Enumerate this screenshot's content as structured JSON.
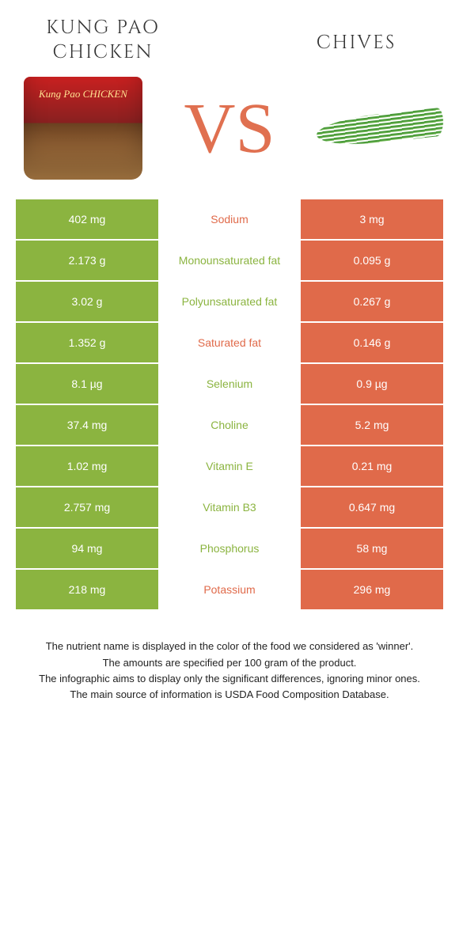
{
  "colors": {
    "left": "#8bb440",
    "right": "#e06a4a",
    "vs": "#e07050"
  },
  "leftFood": {
    "title": "KUNG PAO\nCHICKEN"
  },
  "rightFood": {
    "title": "CHIVES"
  },
  "vsLabel": "VS",
  "rows": [
    {
      "nutrient": "Sodium",
      "left": "402 mg",
      "right": "3 mg",
      "winner": "right"
    },
    {
      "nutrient": "Monounsaturated fat",
      "left": "2.173 g",
      "right": "0.095 g",
      "winner": "left"
    },
    {
      "nutrient": "Polyunsaturated fat",
      "left": "3.02 g",
      "right": "0.267 g",
      "winner": "left"
    },
    {
      "nutrient": "Saturated fat",
      "left": "1.352 g",
      "right": "0.146 g",
      "winner": "right"
    },
    {
      "nutrient": "Selenium",
      "left": "8.1 µg",
      "right": "0.9 µg",
      "winner": "left"
    },
    {
      "nutrient": "Choline",
      "left": "37.4 mg",
      "right": "5.2 mg",
      "winner": "left"
    },
    {
      "nutrient": "Vitamin E",
      "left": "1.02 mg",
      "right": "0.21 mg",
      "winner": "left"
    },
    {
      "nutrient": "Vitamin B3",
      "left": "2.757 mg",
      "right": "0.647 mg",
      "winner": "left"
    },
    {
      "nutrient": "Phosphorus",
      "left": "94 mg",
      "right": "58 mg",
      "winner": "left"
    },
    {
      "nutrient": "Potassium",
      "left": "218 mg",
      "right": "296 mg",
      "winner": "right"
    }
  ],
  "footnotes": [
    "The nutrient name is displayed in the color of the food we considered as 'winner'.",
    "The amounts are specified per 100 gram of the product.",
    "The infographic aims to display only the significant differences, ignoring minor ones.",
    "The main source of information is USDA Food Composition Database."
  ]
}
